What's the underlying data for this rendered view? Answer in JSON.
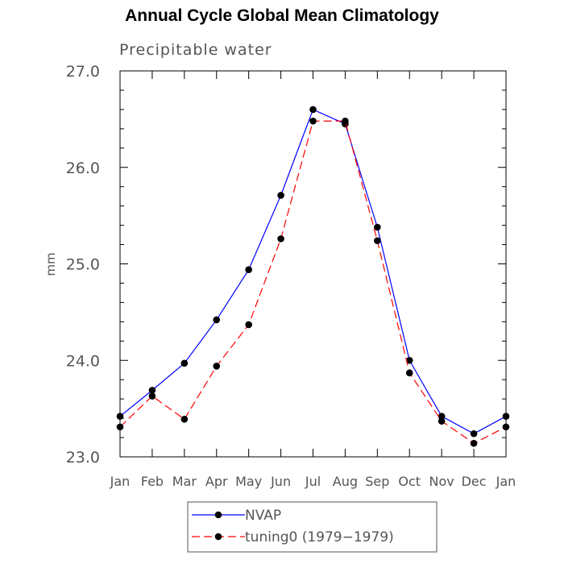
{
  "title": "Annual Cycle Global Mean Climatology",
  "chart_data": {
    "type": "line",
    "title": "Annual Cycle Global Mean Climatology",
    "subtitle": "Precipitable water",
    "xlabel": "",
    "ylabel": "mm",
    "categories": [
      "Jan",
      "Feb",
      "Mar",
      "Apr",
      "May",
      "Jun",
      "Jul",
      "Aug",
      "Sep",
      "Oct",
      "Nov",
      "Dec",
      "Jan"
    ],
    "ylim": [
      23.0,
      27.0
    ],
    "yticks": [
      "23.0",
      "24.0",
      "25.0",
      "26.0",
      "27.0"
    ],
    "series": [
      {
        "name": "NVAP",
        "color": "#0000ff",
        "style": "solid",
        "marker": "filled-circle",
        "values": [
          23.42,
          23.69,
          23.97,
          24.42,
          24.94,
          25.71,
          26.6,
          26.45,
          25.38,
          24.0,
          23.42,
          23.24,
          23.42
        ]
      },
      {
        "name": "tuning0 (1979−1979)",
        "color": "#ff0000",
        "style": "dashed",
        "marker": "filled-circle",
        "values": [
          23.31,
          23.63,
          23.39,
          23.94,
          24.37,
          25.26,
          26.48,
          26.48,
          25.24,
          23.87,
          23.37,
          23.14,
          23.31
        ]
      }
    ],
    "grid": false,
    "legend_position": "bottom-center"
  }
}
